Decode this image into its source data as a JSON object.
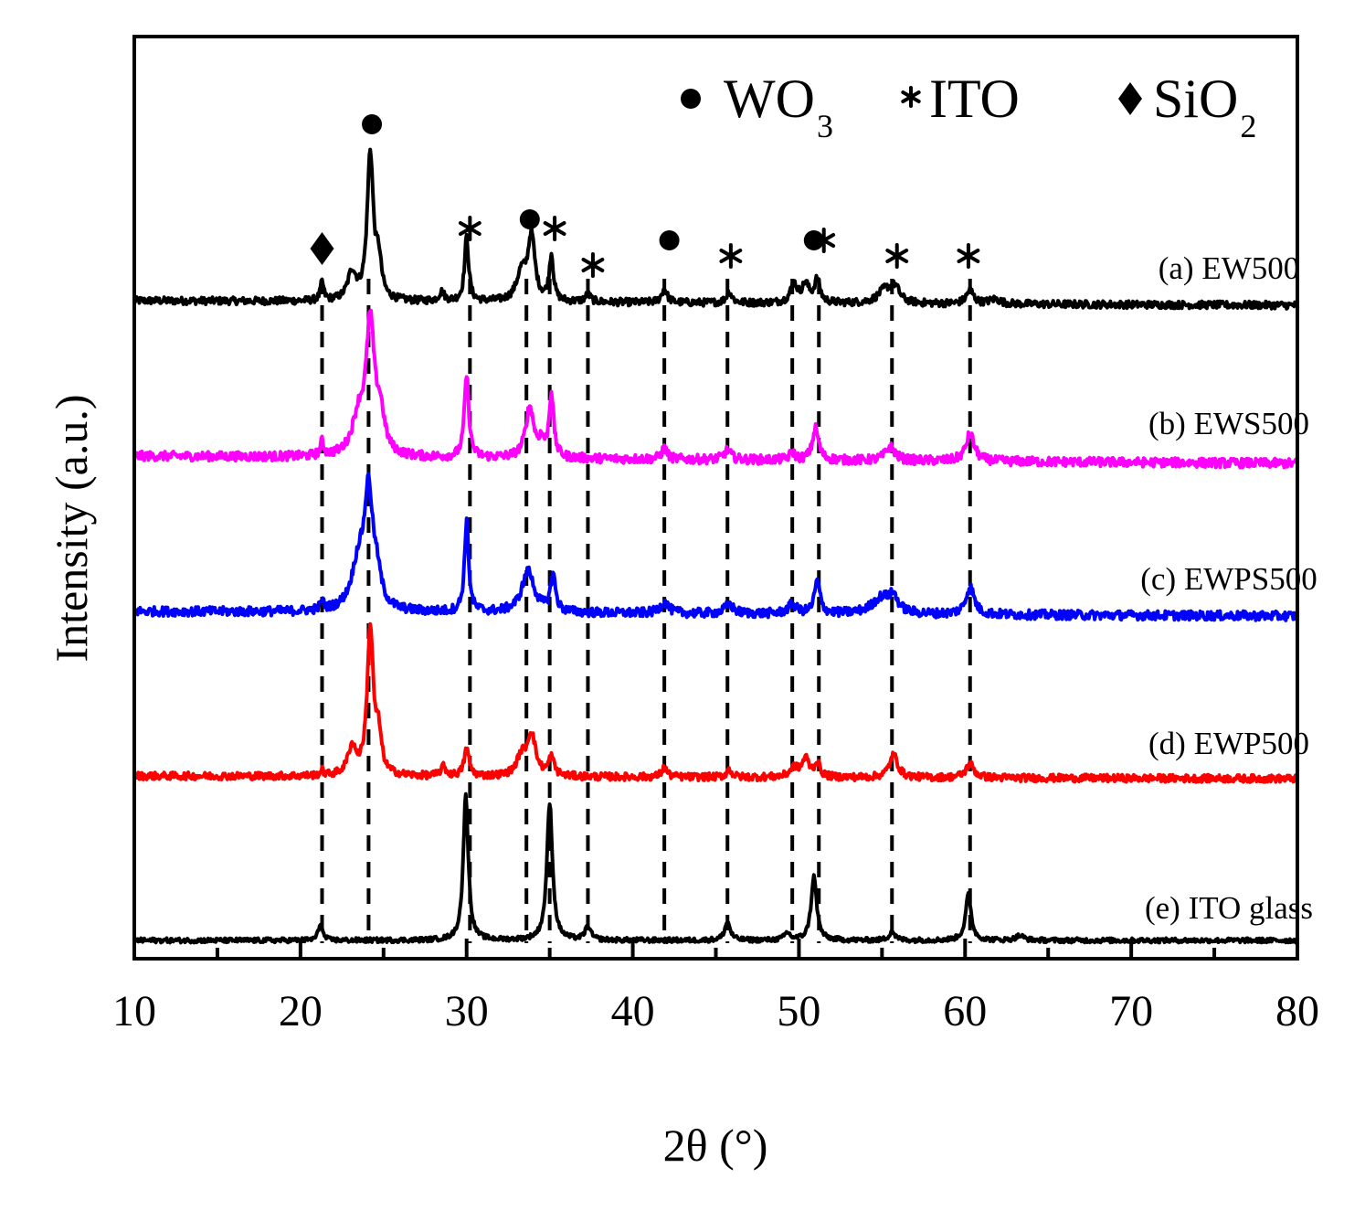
{
  "chart_data": {
    "type": "line",
    "title": "",
    "xlabel": "2θ (°)",
    "ylabel": "Intensity (a.u.)",
    "xlim": [
      10,
      80
    ],
    "xticks": [
      10,
      20,
      30,
      40,
      50,
      60,
      70,
      80
    ],
    "yticks_shown": false,
    "legend": {
      "placement": "top-right",
      "entries": [
        {
          "symbol": "circle",
          "symbol_text": "●",
          "text": "WO",
          "subscript": "3"
        },
        {
          "symbol": "asterisk",
          "symbol_text": "*",
          "text": "ITO",
          "subscript": ""
        },
        {
          "symbol": "diamond",
          "symbol_text": "♦",
          "text": "SiO",
          "subscript": "2"
        }
      ]
    },
    "reference_lines_2theta": [
      21.3,
      24.1,
      30.2,
      33.6,
      35.0,
      37.3,
      41.9,
      45.7,
      49.6,
      51.2,
      55.6,
      60.3
    ],
    "phase_markers": [
      {
        "phase": "SiO2",
        "symbol": "diamond",
        "x": 21.3
      },
      {
        "phase": "WO3",
        "symbol": "circle",
        "x": 24.3
      },
      {
        "phase": "ITO",
        "symbol": "asterisk",
        "x": 30.2
      },
      {
        "phase": "WO3",
        "symbol": "circle",
        "x": 33.8
      },
      {
        "phase": "ITO",
        "symbol": "asterisk",
        "x": 35.3
      },
      {
        "phase": "ITO",
        "symbol": "asterisk",
        "x": 37.6
      },
      {
        "phase": "WO3",
        "symbol": "circle",
        "x": 42.2
      },
      {
        "phase": "ITO",
        "symbol": "asterisk",
        "x": 45.9
      },
      {
        "phase": "WO3",
        "symbol": "circle",
        "x": 50.9
      },
      {
        "phase": "ITO",
        "symbol": "asterisk",
        "x": 51.5
      },
      {
        "phase": "ITO",
        "symbol": "asterisk",
        "x": 55.9
      },
      {
        "phase": "ITO",
        "symbol": "asterisk",
        "x": 60.2
      }
    ],
    "series": [
      {
        "name": "(a) EW500",
        "color": "#000000",
        "offset": 80,
        "noise": 0.8,
        "baseline": [
          [
            10,
            0
          ],
          [
            80,
            -0.5
          ]
        ],
        "peaks": [
          [
            21.3,
            2,
            0.12
          ],
          [
            23.1,
            3,
            0.3
          ],
          [
            24.2,
            16,
            0.22
          ],
          [
            24.7,
            4,
            0.2
          ],
          [
            28.5,
            1,
            0.2
          ],
          [
            30.0,
            7,
            0.15
          ],
          [
            33.3,
            3,
            0.35
          ],
          [
            33.9,
            7,
            0.25
          ],
          [
            35.1,
            5,
            0.15
          ],
          [
            37.3,
            0.8,
            0.2
          ],
          [
            41.9,
            1.5,
            0.2
          ],
          [
            45.8,
            1.2,
            0.2
          ],
          [
            49.7,
            2,
            0.25
          ],
          [
            50.4,
            2,
            0.25
          ],
          [
            51.1,
            2.5,
            0.2
          ],
          [
            55.2,
            1.5,
            0.5
          ],
          [
            55.8,
            1.5,
            0.3
          ],
          [
            60.3,
            1.5,
            0.25
          ],
          [
            61.8,
            0.5,
            0.4
          ]
        ]
      },
      {
        "name": "(b) EWS500",
        "color": "#ff00ff",
        "offset": 63,
        "noise": 1.0,
        "baseline": [
          [
            10,
            0
          ],
          [
            80,
            -0.8
          ]
        ],
        "peaks": [
          [
            21.3,
            1.5,
            0.12
          ],
          [
            23.5,
            4,
            0.45
          ],
          [
            24.2,
            14,
            0.3
          ],
          [
            24.8,
            4,
            0.3
          ],
          [
            30.0,
            9,
            0.16
          ],
          [
            33.8,
            5.5,
            0.3
          ],
          [
            34.5,
            1.5,
            0.2
          ],
          [
            35.1,
            7,
            0.16
          ],
          [
            41.9,
            1.2,
            0.2
          ],
          [
            45.7,
            1,
            0.25
          ],
          [
            49.6,
            0.8,
            0.2
          ],
          [
            51.0,
            3.5,
            0.22
          ],
          [
            55.5,
            1.5,
            0.35
          ],
          [
            60.3,
            3,
            0.3
          ]
        ]
      },
      {
        "name": "(c) EWPS500",
        "color": "#0000ff",
        "offset": 46,
        "noise": 1.0,
        "baseline": [
          [
            10,
            0
          ],
          [
            80,
            -0.5
          ]
        ],
        "peaks": [
          [
            21.3,
            1,
            0.12
          ],
          [
            23.5,
            5,
            0.5
          ],
          [
            24.1,
            12,
            0.3
          ],
          [
            24.6,
            3,
            0.3
          ],
          [
            30.0,
            10,
            0.15
          ],
          [
            33.7,
            4.5,
            0.45
          ],
          [
            35.2,
            4,
            0.18
          ],
          [
            41.9,
            1.2,
            0.3
          ],
          [
            45.8,
            1,
            0.3
          ],
          [
            49.6,
            1,
            0.3
          ],
          [
            51.1,
            3.5,
            0.2
          ],
          [
            55.0,
            1.8,
            0.7
          ],
          [
            55.7,
            1.5,
            0.3
          ],
          [
            60.3,
            3,
            0.3
          ]
        ]
      },
      {
        "name": "(d) EWP500",
        "color": "#ff0000",
        "offset": 28,
        "noise": 0.8,
        "baseline": [
          [
            10,
            0
          ],
          [
            80,
            -0.3
          ]
        ],
        "peaks": [
          [
            21.3,
            0.5,
            0.12
          ],
          [
            23.1,
            3,
            0.3
          ],
          [
            24.2,
            16,
            0.22
          ],
          [
            24.7,
            4,
            0.2
          ],
          [
            28.6,
            1,
            0.2
          ],
          [
            30.0,
            3,
            0.18
          ],
          [
            33.3,
            2,
            0.35
          ],
          [
            33.9,
            4.5,
            0.3
          ],
          [
            35.1,
            2,
            0.2
          ],
          [
            41.9,
            1,
            0.2
          ],
          [
            45.8,
            0.8,
            0.2
          ],
          [
            49.7,
            1,
            0.3
          ],
          [
            50.4,
            2,
            0.25
          ],
          [
            51.1,
            1.5,
            0.2
          ],
          [
            55.7,
            2.5,
            0.3
          ],
          [
            60.3,
            1.5,
            0.3
          ]
        ]
      },
      {
        "name": "(e) ITO glass",
        "color": "#000000",
        "offset": 10,
        "noise": 0.5,
        "baseline": [
          [
            10,
            0
          ],
          [
            80,
            0
          ]
        ],
        "peaks": [
          [
            21.2,
            1.8,
            0.15
          ],
          [
            29.95,
            16,
            0.18
          ],
          [
            35.0,
            15,
            0.2
          ],
          [
            37.3,
            1.5,
            0.2
          ],
          [
            45.7,
            2,
            0.2
          ],
          [
            49.3,
            0.8,
            0.2
          ],
          [
            50.9,
            7,
            0.2
          ],
          [
            55.6,
            1,
            0.2
          ],
          [
            60.2,
            5,
            0.2
          ],
          [
            63.3,
            0.5,
            0.3
          ]
        ]
      }
    ]
  }
}
